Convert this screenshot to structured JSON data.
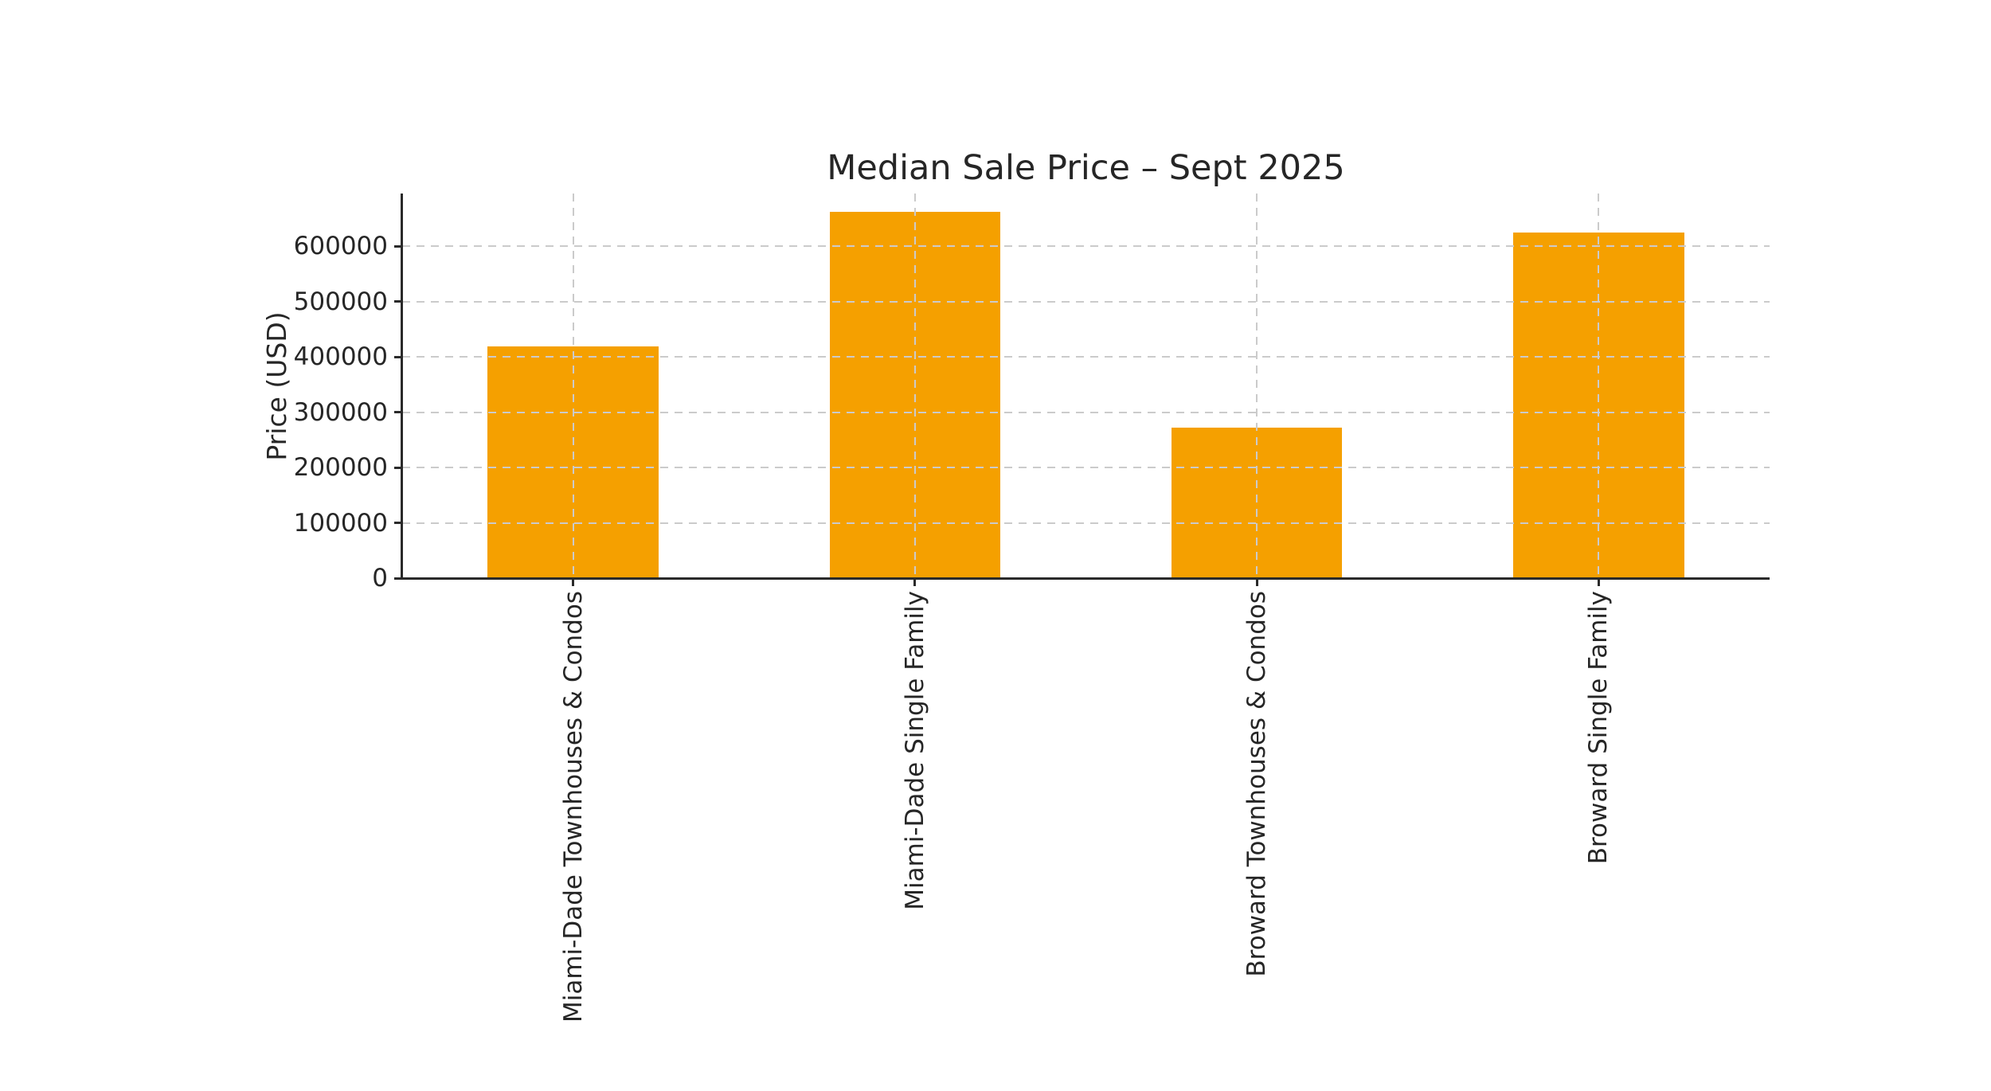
{
  "figure": {
    "background": "#ffffff",
    "text_color": "#262626",
    "grid_color": "#cbcbcb",
    "spine_color": "#2a2a2a"
  },
  "chart_data": {
    "type": "bar",
    "title": "Median Sale Price – Sept 2025",
    "xlabel": "",
    "ylabel": "Price (USD)",
    "categories": [
      "Miami-Dade Townhouses & Condos",
      "Miami-Dade Single Family",
      "Broward Townhouses & Condos",
      "Broward Single Family"
    ],
    "values": [
      419000,
      662500,
      272500,
      625000
    ],
    "bar_color": "#F5A000",
    "yticks": [
      0,
      100000,
      200000,
      300000,
      400000,
      500000,
      600000
    ],
    "ytick_labels": [
      "0",
      "100000",
      "200000",
      "300000",
      "400000",
      "500000",
      "600000"
    ],
    "ylim": [
      0,
      695625
    ],
    "grid": {
      "show": true,
      "axes": "both",
      "style": "dashed"
    },
    "legend": null,
    "x_tick_rotation_deg": 90,
    "bar_width_fraction": 0.5
  }
}
